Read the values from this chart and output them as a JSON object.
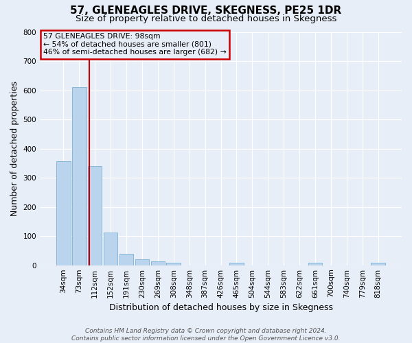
{
  "title": "57, GLENEAGLES DRIVE, SKEGNESS, PE25 1DR",
  "subtitle": "Size of property relative to detached houses in Skegness",
  "xlabel": "Distribution of detached houses by size in Skegness",
  "ylabel": "Number of detached properties",
  "categories": [
    "34sqm",
    "73sqm",
    "112sqm",
    "152sqm",
    "191sqm",
    "230sqm",
    "269sqm",
    "308sqm",
    "348sqm",
    "387sqm",
    "426sqm",
    "465sqm",
    "504sqm",
    "544sqm",
    "583sqm",
    "622sqm",
    "661sqm",
    "700sqm",
    "740sqm",
    "779sqm",
    "818sqm"
  ],
  "bar_heights": [
    357,
    611,
    340,
    113,
    39,
    20,
    13,
    8,
    0,
    0,
    0,
    8,
    0,
    0,
    0,
    0,
    8,
    0,
    0,
    0,
    8
  ],
  "bar_color": "#bad4ed",
  "bar_edge_color": "#7aafd4",
  "vline_color": "#cc0000",
  "vline_index": 1.63,
  "ylim": [
    0,
    800
  ],
  "yticks": [
    0,
    100,
    200,
    300,
    400,
    500,
    600,
    700,
    800
  ],
  "annotation_title": "57 GLENEAGLES DRIVE: 98sqm",
  "annotation_line1": "← 54% of detached houses are smaller (801)",
  "annotation_line2": "46% of semi-detached houses are larger (682) →",
  "annotation_box_color": "#cc0000",
  "footer_line1": "Contains HM Land Registry data © Crown copyright and database right 2024.",
  "footer_line2": "Contains public sector information licensed under the Open Government Licence v3.0.",
  "background_color": "#e8eef7",
  "grid_color": "#ffffff",
  "title_fontsize": 11,
  "subtitle_fontsize": 9.5,
  "label_fontsize": 9,
  "tick_fontsize": 7.5,
  "footer_fontsize": 6.5
}
